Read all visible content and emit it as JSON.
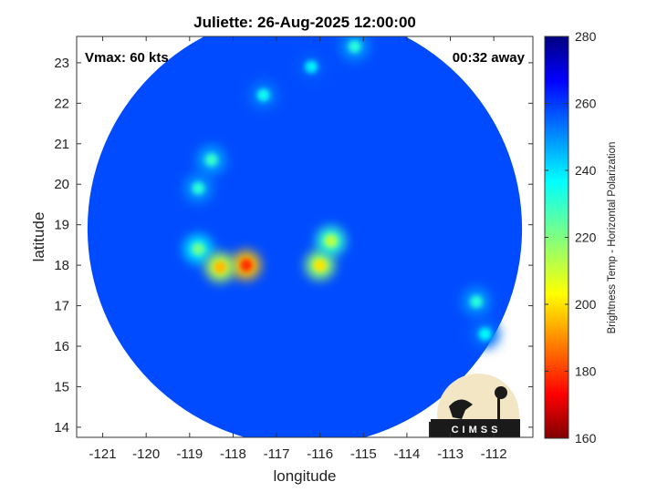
{
  "chart_data": {
    "type": "heatmap",
    "title": "Juliette: 26-Aug-2025 12:00:00",
    "xlabel": "longitude",
    "ylabel": "latitude",
    "xlim": [
      -121.6,
      -111.1
    ],
    "ylim": [
      13.75,
      23.65
    ],
    "x_ticks": [
      -121,
      -120,
      -119,
      -118,
      -117,
      -116,
      -115,
      -114,
      -113,
      -112
    ],
    "y_ticks": [
      14,
      15,
      16,
      17,
      18,
      19,
      20,
      21,
      22,
      23
    ],
    "x_tick_labels": [
      "-121",
      "-120",
      "-119",
      "-118",
      "-117",
      "-116",
      "-115",
      "-114",
      "-113",
      "-112"
    ],
    "y_tick_labels": [
      "14",
      "15",
      "16",
      "17",
      "18",
      "19",
      "20",
      "21",
      "22",
      "23"
    ],
    "annotations": {
      "vmax": "Vmax: 60 kts",
      "time_offset": "00:32 away"
    },
    "colorbar": {
      "label": "Brightness Temp - Horizontal Polarization",
      "min": 160,
      "max": 280,
      "ticks": [
        160,
        180,
        200,
        220,
        240,
        260,
        280
      ],
      "tick_labels": [
        "160",
        "180",
        "200",
        "220",
        "240",
        "260",
        "280"
      ],
      "colormap": "jet"
    },
    "swath": {
      "center": [
        -116.35,
        18.9
      ],
      "radius_deg": 5.0
    },
    "background_value": 258,
    "features": [
      {
        "name": "inner-core",
        "lon": -116.0,
        "lat": 18.0,
        "value": 200
      },
      {
        "name": "eyewall-north",
        "lon": -115.75,
        "lat": 18.6,
        "value": 212
      },
      {
        "name": "spiral-band-west",
        "lon": -118.8,
        "lat": 18.4,
        "value": 222
      },
      {
        "name": "hot-spot-west",
        "lon": -117.7,
        "lat": 18.0,
        "value": 178
      },
      {
        "name": "cell-west",
        "lon": -118.3,
        "lat": 17.95,
        "value": 195
      },
      {
        "name": "band-northwest-1",
        "lon": -118.8,
        "lat": 19.9,
        "value": 232
      },
      {
        "name": "band-northwest-2",
        "lon": -118.5,
        "lat": 20.6,
        "value": 230
      },
      {
        "name": "band-north-1",
        "lon": -117.3,
        "lat": 22.2,
        "value": 235
      },
      {
        "name": "band-north-2",
        "lon": -116.2,
        "lat": 22.9,
        "value": 238
      },
      {
        "name": "cluster-northeast",
        "lon": -115.2,
        "lat": 23.4,
        "value": 232
      },
      {
        "name": "cluster-east-1",
        "lon": -112.4,
        "lat": 17.1,
        "value": 232
      },
      {
        "name": "cluster-east-2",
        "lon": -112.2,
        "lat": 16.3,
        "value": 236
      }
    ]
  },
  "logo": {
    "text": "CIMSS"
  }
}
